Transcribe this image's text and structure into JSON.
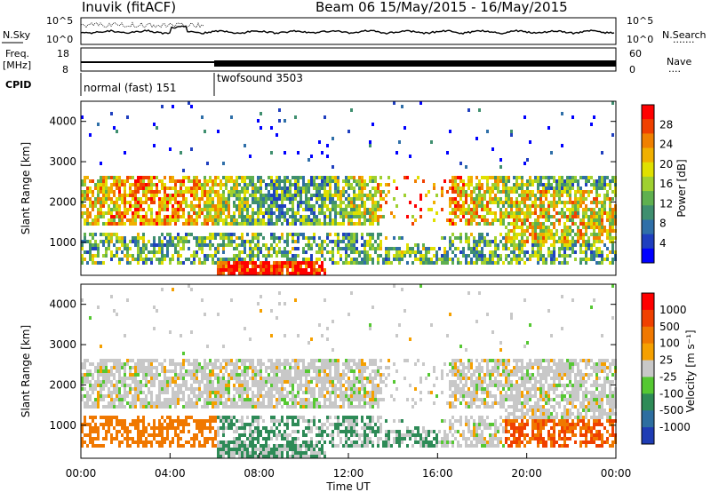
{
  "header": {
    "station": "Inuvik (fitACF)",
    "beam_date": "Beam 06  15/May/2015 - 16/May/2015"
  },
  "top_panels": {
    "noise_left_label": "N.Sky",
    "noise_right_label": "N.Search",
    "noise_right_dots": "·······",
    "noise_ticks_left": [
      "10^5",
      "10^0"
    ],
    "noise_ticks_right": [
      "10^5",
      "10^0"
    ],
    "freq_label_top": "Freq.",
    "freq_label_unit": "[MHz]",
    "freq_ticks": [
      "18",
      "8"
    ],
    "nave_label": "Nave",
    "nave_dots": "····",
    "nave_ticks": [
      "60",
      "0"
    ],
    "cpid_label": "CPID",
    "cpid_modes": [
      {
        "name": "normal (fast) 151",
        "start_hour": 0,
        "end_hour": 6
      },
      {
        "name": "twofsound 3503",
        "start_hour": 6,
        "end_hour": 24
      }
    ]
  },
  "chart_data": [
    {
      "type": "heatmap",
      "panel": "power",
      "ylabel": "Slant Range [km]",
      "xlabel": "",
      "ylim": [
        180,
        4500
      ],
      "xlim": [
        0,
        24
      ],
      "yticks": [
        1000,
        2000,
        3000,
        4000
      ],
      "colorbar": {
        "label": "Power [dB]",
        "ticks": [
          "28",
          "24",
          "20",
          "16",
          "12",
          "8",
          "4"
        ],
        "range": [
          0,
          30
        ],
        "colors": [
          "#0000ff",
          "#1f3fbf",
          "#2f6fa8",
          "#3f8f6f",
          "#5fb04f",
          "#9fd030",
          "#e0e000",
          "#f0b000",
          "#f08000",
          "#f04000",
          "#ff0000"
        ]
      }
    },
    {
      "type": "heatmap",
      "panel": "velocity",
      "ylabel": "Slant Range [km]",
      "xlabel": "Time UT",
      "ylim": [
        180,
        4500
      ],
      "xlim": [
        0,
        24
      ],
      "yticks": [
        1000,
        2000,
        3000,
        4000
      ],
      "xticks": [
        "00:00",
        "04:00",
        "08:00",
        "12:00",
        "16:00",
        "20:00",
        "00:00"
      ],
      "colorbar": {
        "label": "Velocity [m s⁻¹]",
        "ticks": [
          "1000",
          "500",
          "100",
          "25",
          "-25",
          "-100",
          "-500",
          "-1000"
        ],
        "colors": [
          "#1e3cb4",
          "#2d6ea0",
          "#2e8b57",
          "#55c832",
          "#c8c8c8",
          "#f5a000",
          "#f07800",
          "#f04000",
          "#ff0000"
        ]
      }
    }
  ],
  "colors": {
    "gray_scatter": "#c8c8c8",
    "axis": "#000000"
  }
}
